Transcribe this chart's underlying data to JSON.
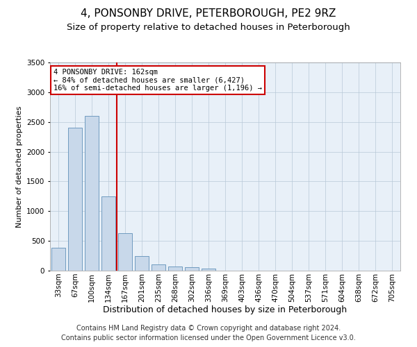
{
  "title": "4, PONSONBY DRIVE, PETERBOROUGH, PE2 9RZ",
  "subtitle": "Size of property relative to detached houses in Peterborough",
  "xlabel": "Distribution of detached houses by size in Peterborough",
  "ylabel": "Number of detached properties",
  "categories": [
    "33sqm",
    "67sqm",
    "100sqm",
    "134sqm",
    "167sqm",
    "201sqm",
    "235sqm",
    "268sqm",
    "302sqm",
    "336sqm",
    "369sqm",
    "403sqm",
    "436sqm",
    "470sqm",
    "504sqm",
    "537sqm",
    "571sqm",
    "604sqm",
    "638sqm",
    "672sqm",
    "705sqm"
  ],
  "values": [
    390,
    2400,
    2600,
    1250,
    630,
    250,
    100,
    65,
    55,
    40,
    0,
    0,
    0,
    0,
    0,
    0,
    0,
    0,
    0,
    0,
    0
  ],
  "bar_color": "#c8d8ea",
  "bar_edge_color": "#6090b8",
  "vline_color": "#cc0000",
  "vline_x_index": 4,
  "annotation_text": "4 PONSONBY DRIVE: 162sqm\n← 84% of detached houses are smaller (6,427)\n16% of semi-detached houses are larger (1,196) →",
  "annotation_box_facecolor": "#ffffff",
  "annotation_box_edgecolor": "#cc0000",
  "ylim": [
    0,
    3500
  ],
  "yticks": [
    0,
    500,
    1000,
    1500,
    2000,
    2500,
    3000,
    3500
  ],
  "footer": "Contains HM Land Registry data © Crown copyright and database right 2024.\nContains public sector information licensed under the Open Government Licence v3.0.",
  "plot_bg_color": "#e8f0f8",
  "title_fontsize": 11,
  "subtitle_fontsize": 9.5,
  "xlabel_fontsize": 9,
  "ylabel_fontsize": 8,
  "tick_fontsize": 7.5,
  "footer_fontsize": 7
}
